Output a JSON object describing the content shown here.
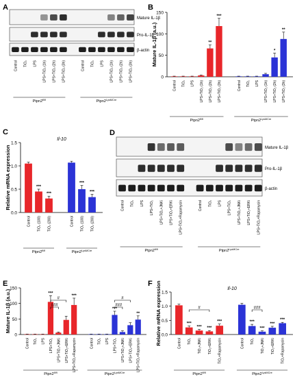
{
  "panels": {
    "A": {
      "letter": "A",
      "blot_labels": [
        "Mature IL-1β",
        "Pro-IL-1β",
        "β-actin"
      ],
      "lanes": [
        "Control",
        "TiO₂",
        "LPS",
        "LPS+TiO₂ (1h)",
        "LPS+TiO₂ (2h)",
        "LPS+TiO₂ (3h)"
      ],
      "groups": [
        "Ptpn2fl/fl",
        "Ptpn2LysMCre"
      ],
      "mature_bands": [
        0,
        0,
        0,
        0.25,
        0.7,
        0.9,
        0,
        0,
        0,
        0.35,
        0.55,
        0.75
      ],
      "pro_bands": [
        0,
        0,
        0.9,
        0.9,
        0.9,
        0.9,
        0,
        0,
        0.9,
        0.9,
        0.9,
        0.9
      ]
    },
    "B": {
      "letter": "B",
      "chart_data": {
        "type": "bar",
        "ylabel": "Mature IL-1β (a.u.)",
        "ylim": [
          0,
          150
        ],
        "yticks": [
          0,
          50,
          100,
          150
        ],
        "categories": [
          "Control",
          "TiO₂",
          "LPS",
          "LPS+TiO₂ (1h)",
          "LPS+TiO₂ (2h)",
          "LPS+TiO₂ (3h)"
        ],
        "series": [
          {
            "name": "Ptpn2fl/fl",
            "color": "#e8262a",
            "values": [
              1,
              1,
              1,
              3,
              66,
              118
            ],
            "errors": [
              0.5,
              0.5,
              0.5,
              1,
              8,
              18
            ],
            "sig": [
              "",
              "",
              "",
              "",
              "**",
              "***"
            ]
          },
          {
            "name": "Ptpn2LysMCre",
            "color": "#2b33d6",
            "values": [
              1,
              1,
              1,
              6,
              45,
              88
            ],
            "errors": [
              0.5,
              0.5,
              0.5,
              2,
              10,
              16
            ],
            "sig": [
              "",
              "",
              "",
              "",
              "*",
              "**"
            ]
          }
        ]
      }
    },
    "C": {
      "letter": "C",
      "chart_data": {
        "type": "bar",
        "title": "Il-10",
        "ylabel": "Relative mRNA expression",
        "ylim": [
          0,
          1.5
        ],
        "yticks": [
          0,
          0.5,
          1.0,
          1.5
        ],
        "ytick_labels": [
          "0.0",
          "0.5",
          "1.0",
          "1.5"
        ],
        "categories": [
          "Control",
          "TiO₂ (100)",
          "TiO₂ (200)"
        ],
        "series": [
          {
            "name": "Ptpn2fl/fl",
            "color": "#e8262a",
            "values": [
              1.05,
              0.45,
              0.3
            ],
            "errors": [
              0.03,
              0.05,
              0.05
            ],
            "sig": [
              "",
              "***",
              "***"
            ]
          },
          {
            "name": "Ptpn2LysMCre",
            "color": "#2b33d6",
            "values": [
              1.07,
              0.5,
              0.33
            ],
            "errors": [
              0.03,
              0.08,
              0.06
            ],
            "sig": [
              "",
              "***",
              "***"
            ]
          }
        ]
      }
    },
    "D": {
      "letter": "D",
      "blot_labels": [
        "Mature IL-1β",
        "Pro-IL-1β",
        "β-actin"
      ],
      "lanes": [
        "Control",
        "TiO₂",
        "LPS",
        "LPS+TiO₂",
        "LPS+TiO₂+JNKi",
        "LPS+TiO₂+ERKi",
        "LPS+TiO₂+Rapamycin"
      ],
      "groups": [
        "Ptpn2fl/fl",
        "Ptpn2LysMCre"
      ],
      "mature_bands": [
        0,
        0,
        0,
        0.85,
        0.5,
        0.6,
        0.6,
        0,
        0,
        0,
        0.7,
        0.35,
        0.5,
        0.7
      ],
      "pro_bands": [
        0,
        0,
        0.9,
        0.9,
        0.9,
        0.9,
        0.9,
        0,
        0,
        0.9,
        0.9,
        0.9,
        0.9,
        0.9
      ]
    },
    "E": {
      "letter": "E",
      "chart_data": {
        "type": "bar",
        "ylabel": "Mature IL-1β (a.u.)",
        "ylim": [
          0,
          150
        ],
        "yticks": [
          0,
          50,
          100,
          150
        ],
        "categories": [
          "Control",
          "TiO₂",
          "LPS",
          "LPS+TiO₂",
          "LPS+TiO₂+JNKi",
          "LPS+TiO₂+ERKi",
          "LPS+TiO₂+Rapamycin"
        ],
        "series": [
          {
            "name": "Ptpn2fl/fl",
            "color": "#e8262a",
            "values": [
              1,
              1,
              1,
              105,
              6,
              47,
              95
            ],
            "errors": [
              0.3,
              0.3,
              0.3,
              20,
              2,
              12,
              22
            ],
            "sig": [
              "",
              "",
              "",
              "***",
              "",
              "",
              "***"
            ],
            "brackets": [
              {
                "label": "#",
                "from": 3,
                "to": 5
              },
              {
                "label": "###",
                "from": 3,
                "to": 4
              }
            ]
          },
          {
            "name": "Ptpn2LysMCre",
            "color": "#2b33d6",
            "values": [
              1,
              1,
              1,
              63,
              8,
              30,
              48
            ],
            "errors": [
              0.3,
              0.3,
              0.3,
              12,
              4,
              8,
              12
            ],
            "sig": [
              "",
              "",
              "",
              "***",
              "",
              "",
              "**"
            ],
            "brackets": [
              {
                "label": "#",
                "from": 3,
                "to": 5
              },
              {
                "label": "###",
                "from": 3,
                "to": 4
              }
            ]
          }
        ]
      }
    },
    "F": {
      "letter": "F",
      "chart_data": {
        "type": "bar",
        "title": "Il-10",
        "ylabel": "Relative mRNA expression",
        "ylim": [
          0,
          1.5
        ],
        "yticks": [
          0,
          0.5,
          1.0,
          1.5
        ],
        "ytick_labels": [
          "0.0",
          "0.5",
          "1.0",
          "1.5"
        ],
        "categories": [
          "Control",
          "TiO₂",
          "TiO₂+JNKi",
          "TiO₂+ERKi",
          "TiO₂+Rapamycin"
        ],
        "series": [
          {
            "name": "Ptpn2fl/fl",
            "color": "#e8262a",
            "values": [
              1.03,
              0.25,
              0.14,
              0.11,
              0.31
            ],
            "errors": [
              0.04,
              0.05,
              0.04,
              0.03,
              0.06
            ],
            "sig": [
              "",
              "***",
              "***",
              "***",
              "***"
            ],
            "brackets": [
              {
                "label": "#",
                "from": 1,
                "to": 3
              }
            ]
          },
          {
            "name": "Ptpn2LysMCre",
            "color": "#2b33d6",
            "values": [
              1.05,
              0.3,
              0.1,
              0.24,
              0.4
            ],
            "errors": [
              0.05,
              0.06,
              0.03,
              0.05,
              0.03
            ],
            "sig": [
              "",
              "***",
              "***",
              "***",
              "***"
            ],
            "brackets": [
              {
                "label": "###",
                "from": 1,
                "to": 2
              }
            ]
          }
        ]
      }
    }
  }
}
